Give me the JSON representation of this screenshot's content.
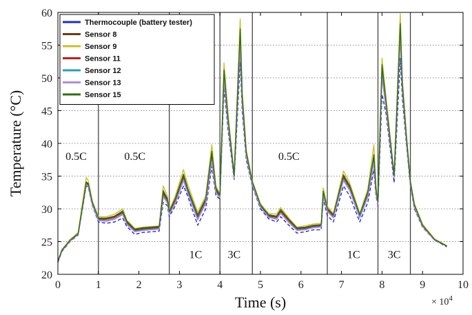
{
  "chart_data": {
    "type": "line",
    "xlabel": "Time (s)",
    "ylabel": "Temperature (°C)",
    "x_scale_label": "× 10",
    "x_scale_exponent": "4",
    "xlim": [
      0,
      10
    ],
    "ylim": [
      20,
      60
    ],
    "x_ticks": [
      0,
      1,
      2,
      3,
      4,
      5,
      6,
      7,
      8,
      9,
      10
    ],
    "y_ticks": [
      20,
      25,
      30,
      35,
      40,
      45,
      50,
      55,
      60
    ],
    "grid": true,
    "legend_position": "top-left",
    "phase_boundaries": [
      1.0,
      2.75,
      4.0,
      4.8,
      6.65,
      7.9,
      8.7
    ],
    "phase_labels": [
      {
        "text": "0.5C",
        "x": 0.45,
        "y": 37.5
      },
      {
        "text": "0.5C",
        "x": 1.9,
        "y": 37.5
      },
      {
        "text": "0.5C",
        "x": 5.7,
        "y": 37.5
      },
      {
        "text": "1C",
        "x": 3.4,
        "y": 22.5
      },
      {
        "text": "3C",
        "x": 4.35,
        "y": 22.5
      },
      {
        "text": "1C",
        "x": 7.3,
        "y": 22.5
      },
      {
        "text": "3C",
        "x": 8.3,
        "y": 22.5
      }
    ],
    "series": [
      {
        "name": "Thermocouple (battery tester)",
        "color": "#1f2ccc",
        "dashed": true,
        "x": [
          0,
          0.1,
          0.3,
          0.5,
          0.7,
          0.75,
          0.85,
          1.0,
          1.2,
          1.4,
          1.6,
          1.7,
          1.9,
          2.1,
          2.3,
          2.5,
          2.6,
          2.7,
          2.75,
          2.9,
          3.1,
          3.2,
          3.45,
          3.65,
          3.8,
          3.9,
          4.0,
          4.1,
          4.2,
          4.35,
          4.5,
          4.55,
          4.65,
          4.8,
          5.0,
          5.2,
          5.4,
          5.5,
          5.7,
          5.9,
          6.1,
          6.3,
          6.5,
          6.55,
          6.65,
          6.8,
          7.05,
          7.2,
          7.45,
          7.65,
          7.8,
          7.85,
          7.9,
          8.0,
          8.1,
          8.3,
          8.45,
          8.5,
          8.6,
          8.7,
          8.8,
          9.0,
          9.3,
          9.6
        ],
        "y": [
          21.8,
          23.5,
          25.0,
          26.0,
          33.5,
          33.3,
          30.5,
          28.0,
          27.8,
          28.0,
          28.6,
          27.3,
          26.1,
          26.4,
          26.5,
          26.6,
          31.0,
          30.5,
          28.8,
          30.5,
          33.5,
          32.0,
          27.5,
          30.0,
          36.5,
          32.0,
          31.5,
          48.5,
          42.0,
          34.5,
          52.5,
          45.0,
          37.5,
          33.5,
          30.0,
          28.5,
          28.0,
          28.8,
          27.5,
          26.3,
          26.5,
          26.8,
          26.8,
          31.5,
          29.0,
          28.0,
          33.5,
          32.0,
          28.0,
          31.0,
          36.0,
          32.0,
          30.5,
          47.5,
          44.5,
          34.0,
          53.0,
          47.0,
          40.0,
          33.5,
          30.0,
          27.2,
          25.2,
          24.2
        ]
      },
      {
        "name": "Sensor 8",
        "color": "#6e3a12",
        "dashed": false,
        "x": [
          0,
          0.1,
          0.3,
          0.5,
          0.7,
          0.75,
          0.85,
          1.0,
          1.2,
          1.4,
          1.6,
          1.7,
          1.9,
          2.1,
          2.3,
          2.5,
          2.6,
          2.7,
          2.75,
          2.9,
          3.1,
          3.2,
          3.45,
          3.65,
          3.8,
          3.9,
          4.0,
          4.1,
          4.2,
          4.35,
          4.5,
          4.55,
          4.65,
          4.8,
          5.0,
          5.2,
          5.4,
          5.5,
          5.7,
          5.9,
          6.1,
          6.3,
          6.5,
          6.55,
          6.65,
          6.8,
          7.05,
          7.2,
          7.45,
          7.65,
          7.8,
          7.85,
          7.9,
          8.0,
          8.1,
          8.3,
          8.45,
          8.5,
          8.6,
          8.7,
          8.8,
          9.0,
          9.3,
          9.6
        ],
        "y": [
          22.0,
          23.7,
          25.2,
          26.2,
          34.0,
          33.8,
          31.0,
          28.5,
          28.5,
          28.8,
          29.5,
          28.0,
          26.8,
          27.0,
          27.1,
          27.2,
          32.5,
          31.5,
          29.5,
          31.5,
          35.0,
          33.0,
          29.0,
          31.5,
          38.5,
          33.0,
          32.0,
          51.0,
          43.5,
          35.0,
          57.0,
          47.0,
          38.5,
          34.0,
          30.5,
          29.0,
          28.8,
          29.8,
          28.3,
          27.0,
          27.1,
          27.4,
          27.5,
          32.5,
          30.0,
          29.0,
          35.0,
          33.5,
          29.0,
          32.5,
          38.0,
          33.0,
          31.0,
          51.5,
          46.0,
          35.0,
          58.0,
          49.0,
          41.0,
          34.0,
          30.5,
          27.5,
          25.3,
          24.3
        ]
      },
      {
        "name": "Sensor 9",
        "color": "#c6c228",
        "dashed": false,
        "x": [
          0,
          0.1,
          0.3,
          0.5,
          0.7,
          0.75,
          0.85,
          1.0,
          1.2,
          1.4,
          1.6,
          1.7,
          1.9,
          2.1,
          2.3,
          2.5,
          2.6,
          2.7,
          2.75,
          2.9,
          3.1,
          3.2,
          3.45,
          3.65,
          3.8,
          3.9,
          4.0,
          4.1,
          4.2,
          4.35,
          4.5,
          4.55,
          4.65,
          4.8,
          5.0,
          5.2,
          5.4,
          5.5,
          5.7,
          5.9,
          6.1,
          6.3,
          6.5,
          6.55,
          6.65,
          6.8,
          7.05,
          7.2,
          7.45,
          7.65,
          7.8,
          7.85,
          7.9,
          8.0,
          8.1,
          8.3,
          8.45,
          8.5,
          8.6,
          8.7,
          8.8,
          9.0,
          9.3,
          9.6
        ],
        "y": [
          22.1,
          23.8,
          25.3,
          26.4,
          34.8,
          34.3,
          31.2,
          28.8,
          28.8,
          29.2,
          30.0,
          28.3,
          27.0,
          27.2,
          27.3,
          27.4,
          33.5,
          32.0,
          29.8,
          32.0,
          36.0,
          33.8,
          29.5,
          32.0,
          39.8,
          33.5,
          32.3,
          52.3,
          44.5,
          35.3,
          59.0,
          48.0,
          39.0,
          34.3,
          30.8,
          29.3,
          29.2,
          30.2,
          28.6,
          27.2,
          27.4,
          27.7,
          27.8,
          33.2,
          30.4,
          29.3,
          35.8,
          34.0,
          29.3,
          33.0,
          39.8,
          33.5,
          31.3,
          53.0,
          47.0,
          35.3,
          59.8,
          50.0,
          41.5,
          34.3,
          30.8,
          27.7,
          25.4,
          24.4
        ]
      },
      {
        "name": "Sensor 11",
        "color": "#c0201c",
        "dashed": false,
        "x": [
          0,
          0.1,
          0.3,
          0.5,
          0.7,
          0.75,
          0.85,
          1.0,
          1.2,
          1.4,
          1.6,
          1.7,
          1.9,
          2.1,
          2.3,
          2.5,
          2.6,
          2.7,
          2.75,
          2.9,
          3.1,
          3.2,
          3.45,
          3.65,
          3.8,
          3.9,
          4.0,
          4.1,
          4.2,
          4.35,
          4.5,
          4.55,
          4.65,
          4.8,
          5.0,
          5.2,
          5.4,
          5.5,
          5.7,
          5.9,
          6.1,
          6.3,
          6.5,
          6.55,
          6.65,
          6.8,
          7.05,
          7.2,
          7.45,
          7.65,
          7.8,
          7.85,
          7.9,
          8.0,
          8.1,
          8.3,
          8.45,
          8.5,
          8.6,
          8.7,
          8.8,
          9.0,
          9.3,
          9.6
        ],
        "y": [
          22.0,
          23.6,
          25.1,
          26.1,
          33.9,
          33.6,
          30.8,
          28.4,
          28.4,
          28.7,
          29.4,
          27.9,
          26.7,
          26.9,
          27.0,
          27.1,
          32.3,
          31.3,
          29.4,
          31.3,
          34.8,
          32.8,
          28.8,
          31.3,
          38.0,
          32.8,
          31.9,
          50.5,
          43.2,
          34.9,
          56.3,
          46.7,
          38.3,
          33.9,
          30.4,
          28.9,
          28.7,
          29.6,
          28.2,
          26.9,
          27.0,
          27.3,
          27.4,
          32.3,
          29.9,
          28.9,
          34.8,
          33.3,
          28.9,
          32.3,
          37.6,
          32.8,
          30.9,
          51.0,
          45.8,
          34.9,
          57.5,
          48.8,
          40.8,
          33.9,
          30.4,
          27.4,
          25.3,
          24.3
        ]
      },
      {
        "name": "Sensor 12",
        "color": "#2a9bc2",
        "dashed": false,
        "x": [
          0,
          0.1,
          0.3,
          0.5,
          0.7,
          0.75,
          0.85,
          1.0,
          1.2,
          1.4,
          1.6,
          1.7,
          1.9,
          2.1,
          2.3,
          2.5,
          2.6,
          2.7,
          2.75,
          2.9,
          3.1,
          3.2,
          3.45,
          3.65,
          3.8,
          3.9,
          4.0,
          4.1,
          4.2,
          4.35,
          4.5,
          4.55,
          4.65,
          4.8,
          5.0,
          5.2,
          5.4,
          5.5,
          5.7,
          5.9,
          6.1,
          6.3,
          6.5,
          6.55,
          6.65,
          6.8,
          7.05,
          7.2,
          7.45,
          7.65,
          7.8,
          7.85,
          7.9,
          8.0,
          8.1,
          8.3,
          8.45,
          8.5,
          8.6,
          8.7,
          8.8,
          9.0,
          9.3,
          9.6
        ],
        "y": [
          21.9,
          23.6,
          25.1,
          26.1,
          33.8,
          33.5,
          30.7,
          28.3,
          28.2,
          28.5,
          29.2,
          27.7,
          26.6,
          26.8,
          26.9,
          27.0,
          32.0,
          31.0,
          29.2,
          31.0,
          34.5,
          32.6,
          28.5,
          31.0,
          37.5,
          32.6,
          31.8,
          50.0,
          43.0,
          34.8,
          55.5,
          46.3,
          38.1,
          33.8,
          30.3,
          28.8,
          28.5,
          29.4,
          28.0,
          26.8,
          26.9,
          27.2,
          27.3,
          32.1,
          29.7,
          28.7,
          34.5,
          33.0,
          28.7,
          32.0,
          37.3,
          32.6,
          30.8,
          50.5,
          45.5,
          34.8,
          56.8,
          48.5,
          40.6,
          33.8,
          30.3,
          27.4,
          25.3,
          24.3
        ]
      },
      {
        "name": "Sensor 13",
        "color": "#b48ae0",
        "dashed": false,
        "x": [
          0,
          0.1,
          0.3,
          0.5,
          0.7,
          0.75,
          0.85,
          1.0,
          1.2,
          1.4,
          1.6,
          1.7,
          1.9,
          2.1,
          2.3,
          2.5,
          2.6,
          2.7,
          2.75,
          2.9,
          3.1,
          3.2,
          3.45,
          3.65,
          3.8,
          3.9,
          4.0,
          4.1,
          4.2,
          4.35,
          4.5,
          4.55,
          4.65,
          4.8,
          5.0,
          5.2,
          5.4,
          5.5,
          5.7,
          5.9,
          6.1,
          6.3,
          6.5,
          6.55,
          6.65,
          6.8,
          7.05,
          7.2,
          7.45,
          7.65,
          7.8,
          7.85,
          7.9,
          8.0,
          8.1,
          8.3,
          8.45,
          8.5,
          8.6,
          8.7,
          8.8,
          9.0,
          9.3,
          9.6
        ],
        "y": [
          21.9,
          23.6,
          25.1,
          26.1,
          33.7,
          33.4,
          30.6,
          28.2,
          28.1,
          28.4,
          29.1,
          27.6,
          26.5,
          26.7,
          26.8,
          26.9,
          31.8,
          30.9,
          29.1,
          30.9,
          34.3,
          32.4,
          28.3,
          30.8,
          37.2,
          32.4,
          31.7,
          49.6,
          42.8,
          34.7,
          55.0,
          46.0,
          38.0,
          33.7,
          30.2,
          28.7,
          28.4,
          29.3,
          27.9,
          26.7,
          26.8,
          27.1,
          27.2,
          31.9,
          29.6,
          28.6,
          34.3,
          32.8,
          28.6,
          31.8,
          37.0,
          32.4,
          30.7,
          50.0,
          45.2,
          34.7,
          56.2,
          48.2,
          40.5,
          33.7,
          30.2,
          27.3,
          25.2,
          24.3
        ]
      },
      {
        "name": "Sensor 15",
        "color": "#2f6e12",
        "dashed": false,
        "x": [
          0,
          0.1,
          0.3,
          0.5,
          0.7,
          0.75,
          0.85,
          1.0,
          1.2,
          1.4,
          1.6,
          1.7,
          1.9,
          2.1,
          2.3,
          2.5,
          2.6,
          2.7,
          2.75,
          2.9,
          3.1,
          3.2,
          3.45,
          3.65,
          3.8,
          3.9,
          4.0,
          4.1,
          4.2,
          4.35,
          4.5,
          4.55,
          4.65,
          4.8,
          5.0,
          5.2,
          5.4,
          5.5,
          5.7,
          5.9,
          6.1,
          6.3,
          6.5,
          6.55,
          6.65,
          6.8,
          7.05,
          7.2,
          7.45,
          7.65,
          7.8,
          7.85,
          7.9,
          8.0,
          8.1,
          8.3,
          8.45,
          8.5,
          8.6,
          8.7,
          8.8,
          9.0,
          9.3,
          9.6
        ],
        "y": [
          22.0,
          23.7,
          25.2,
          26.2,
          34.1,
          33.9,
          31.0,
          28.6,
          28.6,
          28.9,
          29.7,
          28.1,
          26.9,
          27.1,
          27.2,
          27.3,
          32.8,
          31.6,
          29.6,
          31.6,
          35.3,
          33.2,
          29.1,
          31.6,
          38.8,
          33.2,
          32.1,
          51.2,
          43.8,
          35.1,
          57.5,
          47.3,
          38.6,
          34.1,
          30.6,
          29.1,
          28.9,
          29.9,
          28.4,
          27.1,
          27.2,
          27.5,
          27.6,
          32.7,
          30.1,
          29.1,
          35.2,
          33.6,
          29.1,
          32.6,
          38.3,
          33.1,
          31.1,
          52.0,
          46.3,
          35.1,
          58.3,
          49.3,
          41.2,
          34.1,
          30.6,
          27.5,
          25.3,
          24.3
        ]
      }
    ]
  }
}
